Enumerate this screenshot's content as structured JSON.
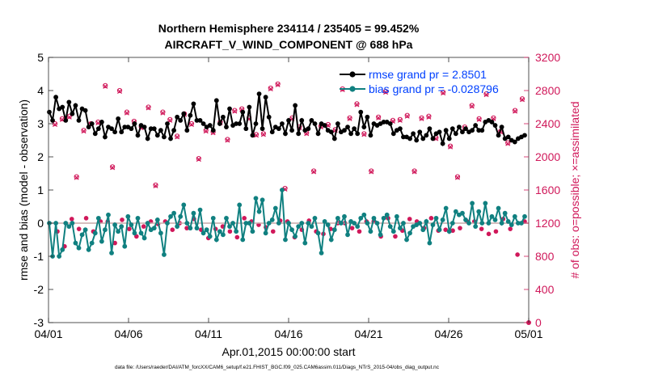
{
  "chart_data": {
    "type": "line",
    "title_line1": "Northern Hemisphere 234114 / 235405 = 99.452%",
    "title_line2": "AIRCRAFT_V_WIND_COMPONENT @ 688 hPa",
    "xlabel": "Apr.01,2015 00:00:00 start",
    "ylabel_left": "rmse and bias (model - observation)",
    "ylabel_right": "# of obs: o=possible; ×=assimilated",
    "footer": "data file: /Users/raeder/DAI/ATM_forcXX/CAM6_setup/f.e21.FHIST_BGC.f09_025.CAM6assim.011/Diags_NTrS_2015-04/obs_diag_output.nc",
    "xlim": [
      0,
      30
    ],
    "ylim_left": [
      -3,
      5
    ],
    "ylim_right": [
      0,
      3200
    ],
    "x_tick_labels": [
      "04/01",
      "04/06",
      "04/11",
      "04/16",
      "04/21",
      "04/26",
      "05/01"
    ],
    "x_tick_values": [
      0,
      5,
      10,
      15,
      20,
      25,
      30
    ],
    "y_left_ticks": [
      "-3",
      "-2",
      "-1",
      "0",
      "1",
      "2",
      "3",
      "4",
      "5"
    ],
    "y_right_ticks": [
      "0",
      "400",
      "800",
      "1200",
      "1600",
      "2000",
      "2400",
      "2800",
      "3200"
    ],
    "legend": [
      {
        "label": "rmse grand pr = 2.8501",
        "color": "#000000"
      },
      {
        "label": "bias grand pr = -0.028796",
        "color": "#108080"
      }
    ],
    "colors": {
      "rmse": "#000000",
      "bias": "#108080",
      "obs": "#d0185a",
      "legend_text": "#0040ff",
      "zero_line": "#c8a8a8"
    },
    "series": [
      {
        "name": "rmse",
        "values": [
          3.35,
          3.1,
          3.8,
          3.45,
          3.5,
          3.1,
          3.65,
          3.3,
          3.55,
          3.1,
          3.45,
          3.4,
          2.9,
          3.0,
          2.7,
          2.85,
          3.05,
          2.6,
          2.9,
          2.85,
          2.75,
          3.15,
          2.75,
          2.9,
          2.9,
          2.85,
          3.0,
          2.65,
          2.95,
          2.9,
          2.55,
          2.85,
          2.85,
          2.65,
          2.8,
          2.6,
          3.0,
          2.55,
          2.8,
          3.2,
          3.1,
          3.3,
          2.8,
          3.25,
          3.6,
          3.1,
          3.1,
          3.0,
          2.9,
          2.95,
          2.8,
          3.7,
          3.0,
          3.2,
          2.9,
          3.45,
          2.95,
          3.0,
          3.0,
          3.35,
          2.85,
          3.5,
          2.65,
          3.0,
          3.9,
          2.85,
          3.8,
          3.2,
          2.75,
          2.9,
          2.85,
          3.0,
          2.7,
          3.1,
          2.8,
          3.55,
          2.7,
          3.1,
          2.8,
          2.85,
          3.1,
          3.0,
          2.7,
          3.0,
          2.95,
          2.8,
          2.75,
          2.55,
          3.0,
          2.75,
          2.8,
          2.9,
          2.7,
          2.85,
          2.7,
          3.35,
          2.9,
          3.2,
          2.65,
          3.0,
          2.95,
          3.0,
          3.05,
          3.05,
          3.0,
          2.7,
          2.8,
          2.85,
          2.6,
          2.6,
          2.55,
          2.7,
          2.5,
          2.75,
          2.55,
          2.65,
          2.85,
          2.55,
          2.7,
          2.75,
          2.4,
          2.8,
          2.55,
          2.85,
          2.7,
          2.9,
          2.75,
          2.85,
          2.75,
          2.8,
          2.95,
          2.8,
          2.8,
          3.05,
          3.1,
          3.05,
          2.95,
          2.65,
          2.9,
          2.55,
          2.6,
          2.5,
          2.45,
          2.55,
          2.6,
          2.65
        ]
      },
      {
        "name": "bias",
        "values": [
          0.0,
          -1.0,
          0.0,
          -1.0,
          -0.8,
          0.0,
          -0.1,
          0.0,
          -0.6,
          -0.75,
          -0.35,
          -0.2,
          -0.8,
          -0.6,
          -0.3,
          0.15,
          -0.55,
          -0.2,
          0.25,
          -0.9,
          -0.05,
          -0.25,
          -0.1,
          -0.7,
          0.2,
          -0.05,
          -0.3,
          0.15,
          -0.3,
          -0.45,
          0.0,
          -0.2,
          -0.15,
          0.1,
          -0.3,
          -0.95,
          0.0,
          0.2,
          0.3,
          -0.1,
          0.2,
          0.55,
          0.0,
          -0.15,
          0.3,
          -0.15,
          0.4,
          -0.3,
          -0.2,
          -0.4,
          0.15,
          -0.5,
          -0.25,
          -0.35,
          0.15,
          -0.1,
          0.0,
          -0.25,
          0.55,
          -0.5,
          0.0,
          0.0,
          -0.25,
          0.75,
          0.35,
          0.7,
          -0.3,
          0.0,
          0.1,
          0.45,
          0.0,
          1.0,
          -0.5,
          0.0,
          -0.2,
          -0.4,
          -0.1,
          0.0,
          -0.6,
          0.0,
          -0.1,
          0.15,
          -0.3,
          -0.9,
          0.05,
          -0.05,
          -0.5,
          -0.2,
          0.15,
          0.0,
          0.2,
          -0.35,
          0.05,
          0.0,
          -0.1,
          0.15,
          0.25,
          0.0,
          -0.25,
          0.15,
          0.0,
          -0.35,
          0.15,
          0.25,
          -0.1,
          -0.25,
          0.2,
          -0.15,
          0.0,
          -0.5,
          -0.3,
          -0.1,
          -0.05,
          0.0,
          -0.2,
          0.05,
          -0.6,
          -0.05,
          0.15,
          -0.2,
          0.1,
          0.45,
          -0.25,
          0.0,
          0.35,
          0.25,
          0.3,
          0.1,
          0.0,
          0.6,
          -0.1,
          0.35,
          0.0,
          0.6,
          0.0,
          0.2,
          0.1,
          0.45,
          0.0,
          0.3,
          0.05,
          -0.05,
          0.2,
          0.0,
          0.0,
          0.2
        ]
      },
      {
        "name": "obs_possible",
        "values": [
          2400,
          2460,
          2490,
          1760,
          2320,
          2400,
          2420,
          2860,
          1880,
          2800,
          2540,
          2430,
          2360,
          2600,
          1660,
          2540,
          2450,
          2250,
          2520,
          2400,
          1980,
          2320,
          2300,
          2420,
          2210,
          2560,
          2580,
          2470,
          2270,
          2280,
          2830,
          2880,
          1620,
          2470,
          2360,
          2290,
          1830,
          2370,
          2390,
          2330,
          2820,
          2470,
          2640,
          2280,
          1830,
          2480,
          2790,
          2440,
          2450,
          2500,
          1830,
          2470,
          2490,
          2230,
          2780,
          2130,
          1760,
          2360,
          2620,
          2460,
          2760,
          2470,
          2310,
          2170,
          2560,
          2700
        ]
      },
      {
        "name": "obs_assimilated",
        "values": [
          2390,
          2450,
          2480,
          1750,
          2310,
          2390,
          2410,
          2850,
          1870,
          2790,
          2530,
          2420,
          2350,
          2590,
          1650,
          2530,
          2440,
          2240,
          2510,
          2390,
          1970,
          2310,
          2290,
          2410,
          2200,
          2550,
          2570,
          2460,
          2260,
          2270,
          2820,
          2870,
          1610,
          2460,
          2350,
          2280,
          1820,
          2360,
          2380,
          2320,
          2810,
          2460,
          2630,
          2270,
          1820,
          2470,
          2780,
          2430,
          2440,
          2490,
          1820,
          2460,
          2480,
          2220,
          2770,
          2120,
          1750,
          2350,
          2610,
          2450,
          2750,
          2460,
          2300,
          2160,
          2550,
          2690
        ]
      },
      {
        "name": "obs_low_possible",
        "values": [
          1100,
          920,
          1250,
          1130,
          1260,
          1100,
          1220,
          1220,
          960,
          1240,
          1130,
          1040,
          1160,
          1220,
          1190,
          1220,
          1120,
          1200,
          1140,
          1250,
          1120,
          1020,
          1130,
          1160,
          1100,
          1030,
          1260,
          1220,
          1180,
          1150,
          1100,
          1230,
          1220,
          1030,
          1120,
          1230,
          1100,
          1070,
          1130,
          1200,
          1200,
          1140,
          1100,
          1220,
          1220,
          1040,
          1260,
          1040,
          1110,
          1250,
          1220,
          1140,
          1260,
          1110,
          1120,
          1110,
          1140,
          1220,
          1220,
          1130,
          1070,
          1100,
          1250,
          1130,
          820,
          1220
        ]
      }
    ]
  }
}
